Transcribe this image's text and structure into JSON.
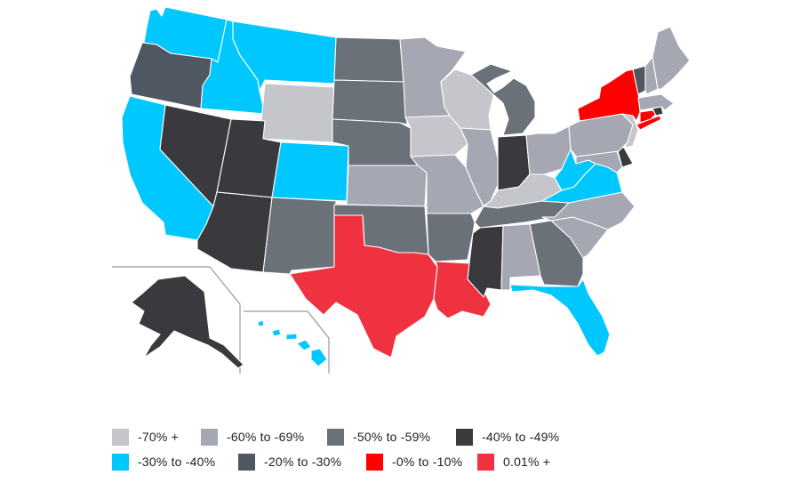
{
  "colors": {
    "c70": "#c4c6cc",
    "c60": "#a5a8b3",
    "c50": "#6b7179",
    "c40": "#3a3a3e",
    "c30": "#00c8ff",
    "c20": "#4f5862",
    "c0": "#ff0000",
    "cpos": "#f0313f",
    "inset_border": "#9a9a9a"
  },
  "legend": {
    "row1": [
      {
        "label": "-70% +",
        "color": "#c4c6cc"
      },
      {
        "label": "-60% to -69%",
        "color": "#a5a8b3"
      },
      {
        "label": "-50% to -59%",
        "color": "#6b7179"
      },
      {
        "label": "-40% to -49%",
        "color": "#3a3a3e"
      }
    ],
    "row2": [
      {
        "label": "-30% to -40%",
        "color": "#00c8ff"
      },
      {
        "label": "-20% to -30%",
        "color": "#4f5862"
      },
      {
        "label": "-0% to -10%",
        "color": "#ff0000"
      },
      {
        "label": "0.01% +",
        "color": "#f0313f"
      }
    ]
  },
  "states": {
    "WA": "c30",
    "OR": "c20",
    "CA": "c30",
    "ID": "c30",
    "MT": "c30",
    "WY": "c70",
    "NV": "c40",
    "UT": "c40",
    "CO": "c30",
    "AZ": "c40",
    "NM": "c50",
    "ND": "c50",
    "SD": "c50",
    "NE": "c50",
    "KS": "c60",
    "OK": "c50",
    "TX": "cpos",
    "MN": "c60",
    "IA": "c70",
    "MO": "c60",
    "AR": "c50",
    "LA": "cpos",
    "WI": "c70",
    "IL": "c60",
    "MI": "c50",
    "IN": "c40",
    "OH": "c60",
    "KY": "c70",
    "TN": "c50",
    "MS": "c40",
    "AL": "c60",
    "GA": "c50",
    "FL": "c30",
    "SC": "c60",
    "NC": "c60",
    "VA": "c30",
    "WV": "c30",
    "MD": "c60",
    "DE": "c40",
    "PA": "c60",
    "NJ": "c70",
    "NY": "c0",
    "CT": "c0",
    "RI": "c40",
    "MA": "c60",
    "VT": "c20",
    "NH": "c60",
    "ME": "c60",
    "AK": "c40",
    "HI": "c30"
  }
}
